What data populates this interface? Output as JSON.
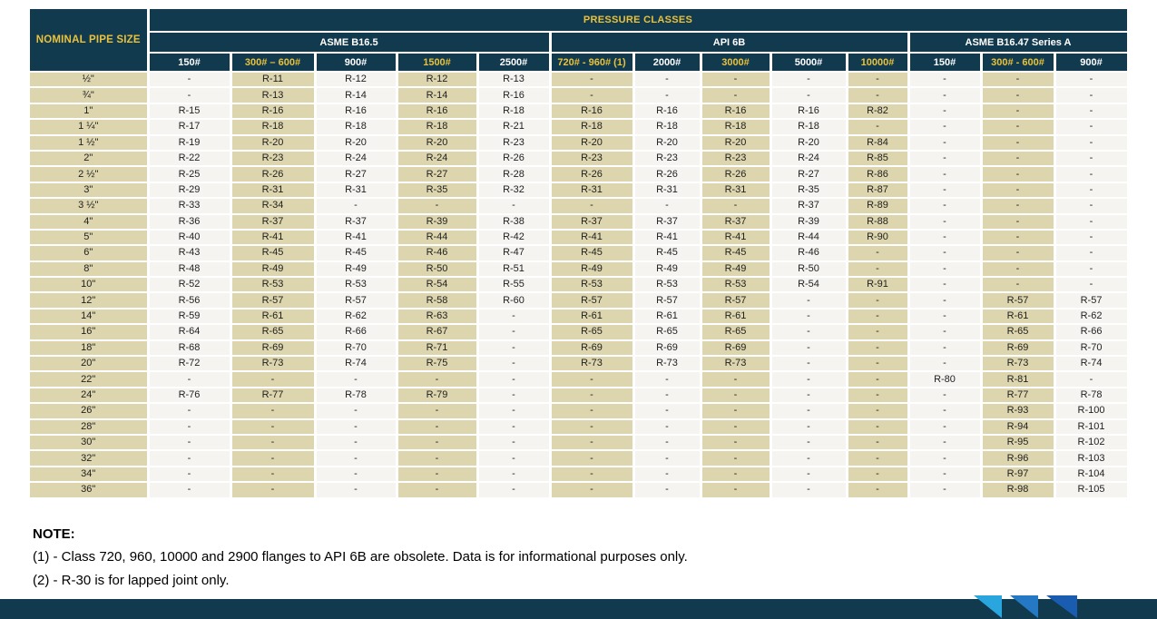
{
  "table": {
    "corner_header": "NOMINAL PIPE SIZE",
    "top_header": "PRESSURE CLASSES",
    "groups": [
      {
        "label": "ASME B16.5",
        "span": 5
      },
      {
        "label": "API 6B",
        "span": 5
      },
      {
        "label": "ASME B16.47 Series A",
        "span": 3
      }
    ],
    "columns": [
      {
        "label": "150#",
        "gold": false
      },
      {
        "label": "300# – 600#",
        "gold": true
      },
      {
        "label": "900#",
        "gold": false
      },
      {
        "label": "1500#",
        "gold": true
      },
      {
        "label": "2500#",
        "gold": false
      },
      {
        "label": "720# - 960# (1)",
        "gold": true
      },
      {
        "label": "2000#",
        "gold": false
      },
      {
        "label": "3000#",
        "gold": true
      },
      {
        "label": "5000#",
        "gold": false
      },
      {
        "label": "10000#",
        "gold": true
      },
      {
        "label": "150#",
        "gold": false
      },
      {
        "label": "300# - 600#",
        "gold": true
      },
      {
        "label": "900#",
        "gold": false
      }
    ],
    "rows": [
      {
        "size": "½\"",
        "values": [
          "-",
          "R-11",
          "R-12",
          "R-12",
          "R-13",
          "-",
          "-",
          "-",
          "-",
          "-",
          "-",
          "-",
          "-"
        ]
      },
      {
        "size": "¾\"",
        "values": [
          "-",
          "R-13",
          "R-14",
          "R-14",
          "R-16",
          "-",
          "-",
          "-",
          "-",
          "-",
          "-",
          "-",
          "-"
        ]
      },
      {
        "size": "1\"",
        "values": [
          "R-15",
          "R-16",
          "R-16",
          "R-16",
          "R-18",
          "R-16",
          "R-16",
          "R-16",
          "R-16",
          "R-82",
          "-",
          "-",
          "-"
        ]
      },
      {
        "size": "1 ¼\"",
        "values": [
          "R-17",
          "R-18",
          "R-18",
          "R-18",
          "R-21",
          "R-18",
          "R-18",
          "R-18",
          "R-18",
          "-",
          "-",
          "-",
          "-"
        ]
      },
      {
        "size": "1 ½\"",
        "values": [
          "R-19",
          "R-20",
          "R-20",
          "R-20",
          "R-23",
          "R-20",
          "R-20",
          "R-20",
          "R-20",
          "R-84",
          "-",
          "-",
          "-"
        ]
      },
      {
        "size": "2\"",
        "values": [
          "R-22",
          "R-23",
          "R-24",
          "R-24",
          "R-26",
          "R-23",
          "R-23",
          "R-23",
          "R-24",
          "R-85",
          "-",
          "-",
          "-"
        ]
      },
      {
        "size": "2 ½\"",
        "values": [
          "R-25",
          "R-26",
          "R-27",
          "R-27",
          "R-28",
          "R-26",
          "R-26",
          "R-26",
          "R-27",
          "R-86",
          "-",
          "-",
          "-"
        ]
      },
      {
        "size": "3\"",
        "values": [
          "R-29",
          "R-31",
          "R-31",
          "R-35",
          "R-32",
          "R-31",
          "R-31",
          "R-31",
          "R-35",
          "R-87",
          "-",
          "-",
          "-"
        ]
      },
      {
        "size": "3 ½\"",
        "values": [
          "R-33",
          "R-34",
          "-",
          "-",
          "-",
          "-",
          "-",
          "-",
          "R-37",
          "R-89",
          "-",
          "-",
          "-"
        ]
      },
      {
        "size": "4\"",
        "values": [
          "R-36",
          "R-37",
          "R-37",
          "R-39",
          "R-38",
          "R-37",
          "R-37",
          "R-37",
          "R-39",
          "R-88",
          "-",
          "-",
          "-"
        ]
      },
      {
        "size": "5\"",
        "values": [
          "R-40",
          "R-41",
          "R-41",
          "R-44",
          "R-42",
          "R-41",
          "R-41",
          "R-41",
          "R-44",
          "R-90",
          "-",
          "-",
          "-"
        ]
      },
      {
        "size": "6\"",
        "values": [
          "R-43",
          "R-45",
          "R-45",
          "R-46",
          "R-47",
          "R-45",
          "R-45",
          "R-45",
          "R-46",
          "-",
          "-",
          "-",
          "-"
        ]
      },
      {
        "size": "8\"",
        "values": [
          "R-48",
          "R-49",
          "R-49",
          "R-50",
          "R-51",
          "R-49",
          "R-49",
          "R-49",
          "R-50",
          "-",
          "-",
          "-",
          "-"
        ]
      },
      {
        "size": "10\"",
        "values": [
          "R-52",
          "R-53",
          "R-53",
          "R-54",
          "R-55",
          "R-53",
          "R-53",
          "R-53",
          "R-54",
          "R-91",
          "-",
          "-",
          "-"
        ]
      },
      {
        "size": "12\"",
        "values": [
          "R-56",
          "R-57",
          "R-57",
          "R-58",
          "R-60",
          "R-57",
          "R-57",
          "R-57",
          "-",
          "-",
          "-",
          "R-57",
          "R-57"
        ]
      },
      {
        "size": "14\"",
        "values": [
          "R-59",
          "R-61",
          "R-62",
          "R-63",
          "-",
          "R-61",
          "R-61",
          "R-61",
          "-",
          "-",
          "-",
          "R-61",
          "R-62"
        ]
      },
      {
        "size": "16\"",
        "values": [
          "R-64",
          "R-65",
          "R-66",
          "R-67",
          "-",
          "R-65",
          "R-65",
          "R-65",
          "-",
          "-",
          "-",
          "R-65",
          "R-66"
        ]
      },
      {
        "size": "18\"",
        "values": [
          "R-68",
          "R-69",
          "R-70",
          "R-71",
          "-",
          "R-69",
          "R-69",
          "R-69",
          "-",
          "-",
          "-",
          "R-69",
          "R-70"
        ]
      },
      {
        "size": "20\"",
        "values": [
          "R-72",
          "R-73",
          "R-74",
          "R-75",
          "-",
          "R-73",
          "R-73",
          "R-73",
          "-",
          "-",
          "-",
          "R-73",
          "R-74"
        ]
      },
      {
        "size": "22\"",
        "values": [
          "-",
          "-",
          "-",
          "-",
          "-",
          "-",
          "-",
          "-",
          "-",
          "-",
          "R-80",
          "R-81",
          "-"
        ]
      },
      {
        "size": "24\"",
        "values": [
          "R-76",
          "R-77",
          "R-78",
          "R-79",
          "-",
          "-",
          "-",
          "-",
          "-",
          "-",
          "-",
          "R-77",
          "R-78"
        ]
      },
      {
        "size": "26\"",
        "values": [
          "-",
          "-",
          "-",
          "-",
          "-",
          "-",
          "-",
          "-",
          "-",
          "-",
          "-",
          "R-93",
          "R-100"
        ]
      },
      {
        "size": "28\"",
        "values": [
          "-",
          "-",
          "-",
          "-",
          "-",
          "-",
          "-",
          "-",
          "-",
          "-",
          "-",
          "R-94",
          "R-101"
        ]
      },
      {
        "size": "30\"",
        "values": [
          "-",
          "-",
          "-",
          "-",
          "-",
          "-",
          "-",
          "-",
          "-",
          "-",
          "-",
          "R-95",
          "R-102"
        ]
      },
      {
        "size": "32\"",
        "values": [
          "-",
          "-",
          "-",
          "-",
          "-",
          "-",
          "-",
          "-",
          "-",
          "-",
          "-",
          "R-96",
          "R-103"
        ]
      },
      {
        "size": "34\"",
        "values": [
          "-",
          "-",
          "-",
          "-",
          "-",
          "-",
          "-",
          "-",
          "-",
          "-",
          "-",
          "R-97",
          "R-104"
        ]
      },
      {
        "size": "36\"",
        "values": [
          "-",
          "-",
          "-",
          "-",
          "-",
          "-",
          "-",
          "-",
          "-",
          "-",
          "-",
          "R-98",
          "R-105"
        ]
      }
    ]
  },
  "note": {
    "heading": "NOTE:",
    "lines": [
      "(1) - Class 720, 960, 10000 and 2900 flanges to API 6B are obsolete. Data is for informational purposes only.",
      "(2) - R-30 is for lapped joint only."
    ]
  },
  "colors": {
    "header_navy": "#123a4e",
    "gold": "#e9c23c",
    "beige": "#ddd5ae",
    "light": "#f5f4f1",
    "chevron_light": "#2aa6df",
    "chevron_mid": "#2478c4",
    "chevron_dark": "#1a5db0"
  }
}
